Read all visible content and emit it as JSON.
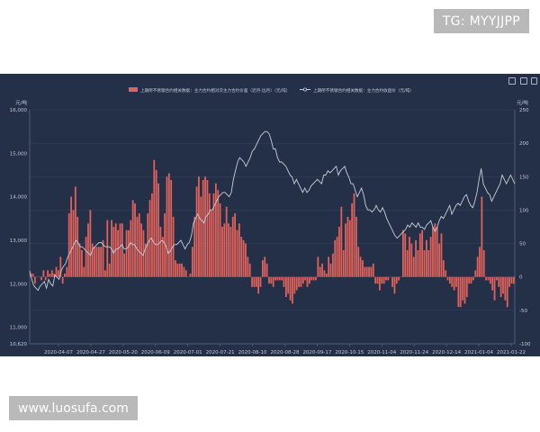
{
  "badges": {
    "tg": "TG: MYYJJPP",
    "site": "www.luosufa.com"
  },
  "colors": {
    "background": "#243047",
    "bar": "#e2635c",
    "line": "#c7cedb",
    "axis_text": "#c4cad6",
    "grid": "#33405a"
  },
  "chart_data": {
    "type": "bar",
    "title": "",
    "legend": {
      "placement": "top-center",
      "bar_label": "上期所不锈钢合约相关数据：主力合约相对次主力合约价差（近月-远月）（元/吨）",
      "line_label": "上期所不锈钢合约相关数据：主力合约收盘价（元/吨）"
    },
    "left_axis": {
      "unit": "元/吨",
      "range": [
        10620,
        16000
      ],
      "ticks": [
        "16,000",
        "15,000",
        "14,000",
        "13,000",
        "12,000",
        "11,000",
        "10,620"
      ],
      "tick_values": [
        16000,
        15000,
        14000,
        13000,
        12000,
        11000,
        10620
      ]
    },
    "right_axis": {
      "unit": "元/吨",
      "range": [
        -100,
        250
      ],
      "ticks": [
        "250",
        "200",
        "150",
        "100",
        "50",
        "0",
        "-50",
        "-100"
      ],
      "tick_values": [
        250,
        200,
        150,
        100,
        50,
        0,
        -50,
        -100
      ]
    },
    "x_axis": {
      "ticks": [
        "2020-04-07",
        "2020-04-27",
        "2020-05-20",
        "2020-06-09",
        "2020-07-01",
        "2020-07-21",
        "2020-08-10",
        "2020-08-28",
        "2020-09-17",
        "2020-10-15",
        "2020-11-04",
        "2020-11-24",
        "2020-12-14",
        "2021-01-04",
        "2021-01-22"
      ]
    },
    "series": [
      {
        "name": "上期所不锈钢合约相关数据：主力合约相对次主力合约价差（近月-远月）（元/吨）",
        "axis": "right",
        "values": [
          5,
          5,
          -10,
          0,
          0,
          -5,
          10,
          -5,
          10,
          5,
          10,
          5,
          15,
          10,
          30,
          -10,
          5,
          15,
          95,
          120,
          100,
          135,
          90,
          50,
          40,
          15,
          60,
          80,
          100,
          50,
          45,
          45,
          45,
          45,
          55,
          10,
          85,
          20,
          85,
          75,
          80,
          70,
          80,
          80,
          35,
          70,
          70,
          85,
          115,
          110,
          90,
          95,
          80,
          70,
          50,
          95,
          115,
          125,
          175,
          160,
          140,
          75,
          60,
          95,
          150,
          155,
          145,
          90,
          25,
          20,
          20,
          20,
          15,
          10,
          0,
          5,
          45,
          90,
          135,
          150,
          120,
          145,
          150,
          145,
          125,
          100,
          125,
          140,
          130,
          110,
          75,
          80,
          105,
          80,
          75,
          90,
          95,
          70,
          80,
          60,
          55,
          50,
          30,
          20,
          -15,
          -15,
          -15,
          -25,
          -15,
          25,
          30,
          20,
          -10,
          -10,
          -15,
          -5,
          -5,
          -5,
          -5,
          -15,
          -30,
          -25,
          -35,
          -40,
          -25,
          -20,
          -15,
          -15,
          -10,
          -5,
          -15,
          -10,
          -5,
          -5,
          -5,
          30,
          15,
          20,
          10,
          5,
          30,
          20,
          35,
          55,
          60,
          75,
          105,
          40,
          80,
          90,
          85,
          110,
          125,
          90,
          45,
          30,
          25,
          15,
          15,
          15,
          15,
          20,
          -10,
          -10,
          -20,
          -10,
          -10,
          -5,
          -5,
          0,
          -15,
          -25,
          -10,
          -5,
          0,
          70,
          65,
          40,
          60,
          50,
          30,
          55,
          40,
          65,
          70,
          40,
          55,
          40,
          60,
          75,
          80,
          75,
          50,
          65,
          25,
          10,
          -5,
          -10,
          -15,
          -20,
          -15,
          -45,
          -45,
          -35,
          -40,
          -30,
          -10,
          -10,
          -5,
          10,
          30,
          45,
          120,
          40,
          -5,
          -5,
          -10,
          -20,
          -35,
          -5,
          -15,
          -30,
          -25,
          -35,
          -45,
          -15,
          -10,
          -10
        ]
      },
      {
        "name": "上期所不锈钢合约相关数据：主力合约收盘价（元/吨）",
        "axis": "left",
        "values": [
          12300,
          12100,
          11950,
          11900,
          11850,
          11950,
          12000,
          12050,
          11900,
          12100,
          12000,
          11950,
          12200,
          12150,
          12100,
          12300,
          12400,
          12450,
          12600,
          12700,
          12800,
          12900,
          13000,
          12950,
          12850,
          12850,
          12800,
          12750,
          12700,
          12650,
          12800,
          12850,
          12900,
          12950,
          12950,
          12900,
          12850,
          12850,
          12850,
          12800,
          12700,
          12800,
          12800,
          12850,
          12900,
          12800,
          12800,
          12850,
          12950,
          12900,
          12900,
          12800,
          12750,
          12700,
          12650,
          12800,
          12900,
          13000,
          13050,
          12950,
          12900,
          12900,
          12950,
          13000,
          12950,
          12850,
          12700,
          12750,
          12850,
          12900,
          12900,
          12950,
          13000,
          12900,
          12800,
          12900,
          12950,
          13100,
          13400,
          13500,
          13600,
          13500,
          13450,
          13400,
          13550,
          13600,
          13700,
          13700,
          13800,
          13900,
          14000,
          14050,
          14100,
          14100,
          14050,
          14000,
          14100,
          14400,
          14600,
          14800,
          14900,
          14850,
          14800,
          14700,
          14800,
          14900,
          15050,
          15100,
          15200,
          15300,
          15400,
          15450,
          15500,
          15500,
          15450,
          15300,
          15100,
          15100,
          14900,
          14800,
          14800,
          14750,
          14700,
          14600,
          14500,
          14450,
          14300,
          14400,
          14300,
          14200,
          14100,
          14200,
          14100,
          14150,
          14250,
          14300,
          14350,
          14400,
          14350,
          14300,
          14500,
          14500,
          14600,
          14550,
          14600,
          14650,
          14700,
          14500,
          14600,
          14650,
          14700,
          14550,
          14450,
          14300,
          14300,
          14150,
          14000,
          14100,
          14200,
          14050,
          13800,
          13700,
          13700,
          13650,
          13700,
          13800,
          13700,
          13650,
          13750,
          13650,
          13500,
          13400,
          13300,
          13200,
          13100,
          13050,
          13100,
          13150,
          13200,
          13250,
          13350,
          13300,
          13400,
          13350,
          13300,
          13400,
          13300,
          13300,
          13250,
          13350,
          13400,
          13450,
          13300,
          13200,
          13300,
          13450,
          13550,
          13500,
          13600,
          13700,
          13800,
          13600,
          13700,
          13800,
          13850,
          13800,
          13900,
          14000,
          14050,
          13900,
          13800,
          13750,
          13900,
          14100,
          14400,
          14650,
          14300,
          14200,
          14100,
          14050,
          13900,
          14000,
          14100,
          14200,
          14300,
          14500,
          14400,
          14300,
          14400,
          14500,
          14400,
          14300
        ]
      }
    ]
  }
}
